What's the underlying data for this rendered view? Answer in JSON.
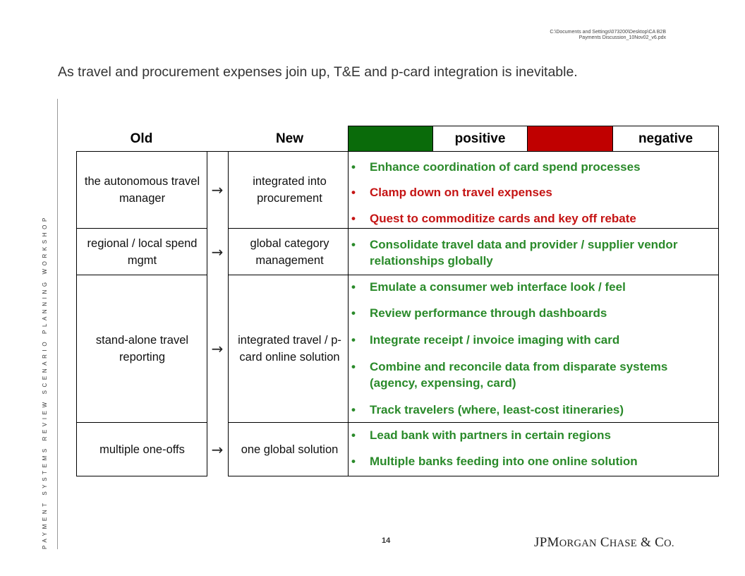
{
  "filepath_line1": "C:\\Documents and Settings\\073200\\Desktop\\CA B2B",
  "filepath_line2": "Payments Discussion_10Nov02_v6.pdx",
  "title": "As travel and procurement expenses join up, T&E and p-card integration is inevitable.",
  "vertical_label": "PAYMENT SYSTEMS REVIEW SCENARIO PLANNING WORKSHOP",
  "page_number": "14",
  "logo_text": "JPMORGAN CHASE & CO.",
  "colors": {
    "positive": "#0a6b0a",
    "negative": "#c00000",
    "positive_text": "#2a8a2a",
    "negative_text": "#c51414"
  },
  "headers": {
    "old": "Old",
    "new": "New",
    "positive": "positive",
    "negative": "negative"
  },
  "arrow": "→",
  "rows": [
    {
      "old": "the autonomous travel manager",
      "new": "integrated into procurement",
      "bullets": [
        {
          "text": "Enhance coordination of card spend processes",
          "tone": "positive"
        },
        {
          "text": "Clamp down on travel expenses",
          "tone": "negative"
        },
        {
          "text": "Quest to commoditize cards and key off rebate",
          "tone": "negative"
        }
      ]
    },
    {
      "old": "regional / local spend mgmt",
      "new": "global category management",
      "bullets": [
        {
          "text": "Consolidate travel data and provider / supplier vendor relationships globally",
          "tone": "positive"
        }
      ]
    },
    {
      "old": "stand-alone travel reporting",
      "new": "integrated travel / p-card online solution",
      "bullets": [
        {
          "text": "Emulate a consumer web interface look / feel",
          "tone": "positive"
        },
        {
          "text": "Review performance through dashboards",
          "tone": "positive"
        },
        {
          "text": "Integrate receipt / invoice imaging with card",
          "tone": "positive"
        },
        {
          "text": "Combine and reconcile data from disparate systems (agency, expensing, card)",
          "tone": "positive"
        },
        {
          "text": "Track travelers (where, least-cost itineraries)",
          "tone": "positive"
        }
      ]
    },
    {
      "old": "multiple one-offs",
      "new": "one global solution",
      "bullets": [
        {
          "text": "Lead bank with partners in certain regions",
          "tone": "positive"
        },
        {
          "text": "Multiple banks feeding into one online solution",
          "tone": "positive"
        }
      ]
    }
  ]
}
